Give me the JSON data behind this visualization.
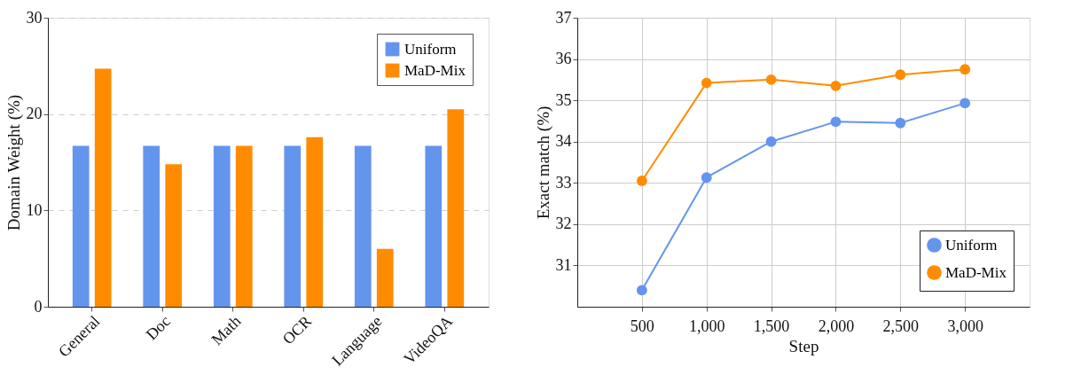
{
  "chart_data": [
    {
      "type": "bar",
      "categories": [
        "General",
        "Doc",
        "Math",
        "OCR",
        "Language",
        "VideoQA"
      ],
      "ylabel": "Domain Weight (%)",
      "ylim": [
        0,
        30
      ],
      "yticks": [
        0,
        10,
        20,
        30
      ],
      "grid": "y",
      "legend": "top right",
      "series": [
        {
          "name": "Uniform",
          "color": "#6495ed",
          "values": [
            16.7,
            16.7,
            16.7,
            16.7,
            16.7,
            16.7
          ]
        },
        {
          "name": "MaD-Mix",
          "color": "#ff8c00",
          "values": [
            24.7,
            14.8,
            16.7,
            17.6,
            6.0,
            20.5
          ]
        }
      ]
    },
    {
      "type": "line",
      "x": [
        500,
        1000,
        1500,
        2000,
        2500,
        3000
      ],
      "xlabel": "Step",
      "ylabel": "Exact match (%)",
      "xlim": [
        0,
        3500
      ],
      "xticks": [
        {
          "value": 500,
          "label": "500"
        },
        {
          "value": 1000,
          "label": "1,000"
        },
        {
          "value": 1500,
          "label": "1,500"
        },
        {
          "value": 2000,
          "label": "2,000"
        },
        {
          "value": 2500,
          "label": "2,500"
        },
        {
          "value": 3000,
          "label": "3,000"
        }
      ],
      "ylim": [
        30,
        37
      ],
      "yticks": [
        31,
        32,
        33,
        34,
        35,
        36,
        37
      ],
      "grid": true,
      "legend": "bottom right",
      "marker": "circle",
      "line_style": "solid",
      "series": [
        {
          "name": "Uniform",
          "color": "#6495ed",
          "values": [
            30.4,
            33.13,
            34.0,
            34.48,
            34.45,
            34.93
          ]
        },
        {
          "name": "MaD-Mix",
          "color": "#ff8c00",
          "values": [
            33.05,
            35.42,
            35.5,
            35.35,
            35.62,
            35.75
          ]
        }
      ]
    }
  ]
}
